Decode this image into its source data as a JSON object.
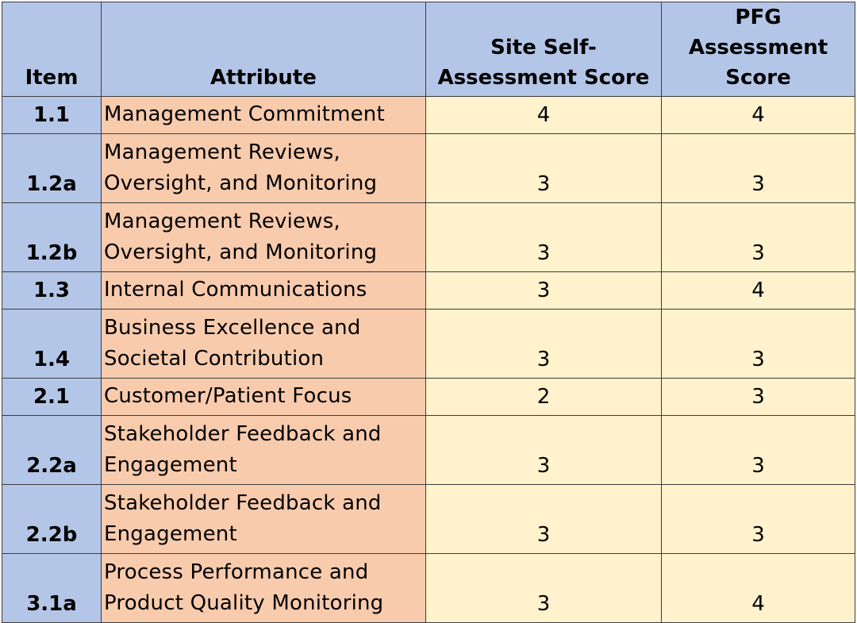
{
  "headers": {
    "item": "Item",
    "attribute": "Attribute",
    "site_score": "Site Self-Assessment Score",
    "pfg_score": "PFG Assessment Score"
  },
  "rows": [
    {
      "item": "1.1",
      "attribute": "Management Commitment",
      "site": "4",
      "pfg": "4"
    },
    {
      "item": "1.2a",
      "attribute": "Management Reviews, Oversight, and Monitoring",
      "site": "3",
      "pfg": "3"
    },
    {
      "item": "1.2b",
      "attribute": "Management Reviews, Oversight, and Monitoring",
      "site": "3",
      "pfg": "3"
    },
    {
      "item": "1.3",
      "attribute": "Internal Communications",
      "site": "3",
      "pfg": "4"
    },
    {
      "item": "1.4",
      "attribute": "Business Excellence and Societal Contribution",
      "site": "3",
      "pfg": "3"
    },
    {
      "item": "2.1",
      "attribute": "Customer/Patient Focus",
      "site": "2",
      "pfg": "3"
    },
    {
      "item": "2.2a",
      "attribute": "Stakeholder Feedback and Engagement",
      "site": "3",
      "pfg": "3"
    },
    {
      "item": "2.2b",
      "attribute": "Stakeholder Feedback and Engagement",
      "site": "3",
      "pfg": "3"
    },
    {
      "item": "3.1a",
      "attribute": "Process Performance and Product Quality Monitoring",
      "site": "3",
      "pfg": "4"
    }
  ],
  "colors": {
    "header_bg": "#b4c6e7",
    "item_bg": "#b4c6e7",
    "attribute_bg": "#f8cbad",
    "score_bg": "#fff2cc"
  }
}
